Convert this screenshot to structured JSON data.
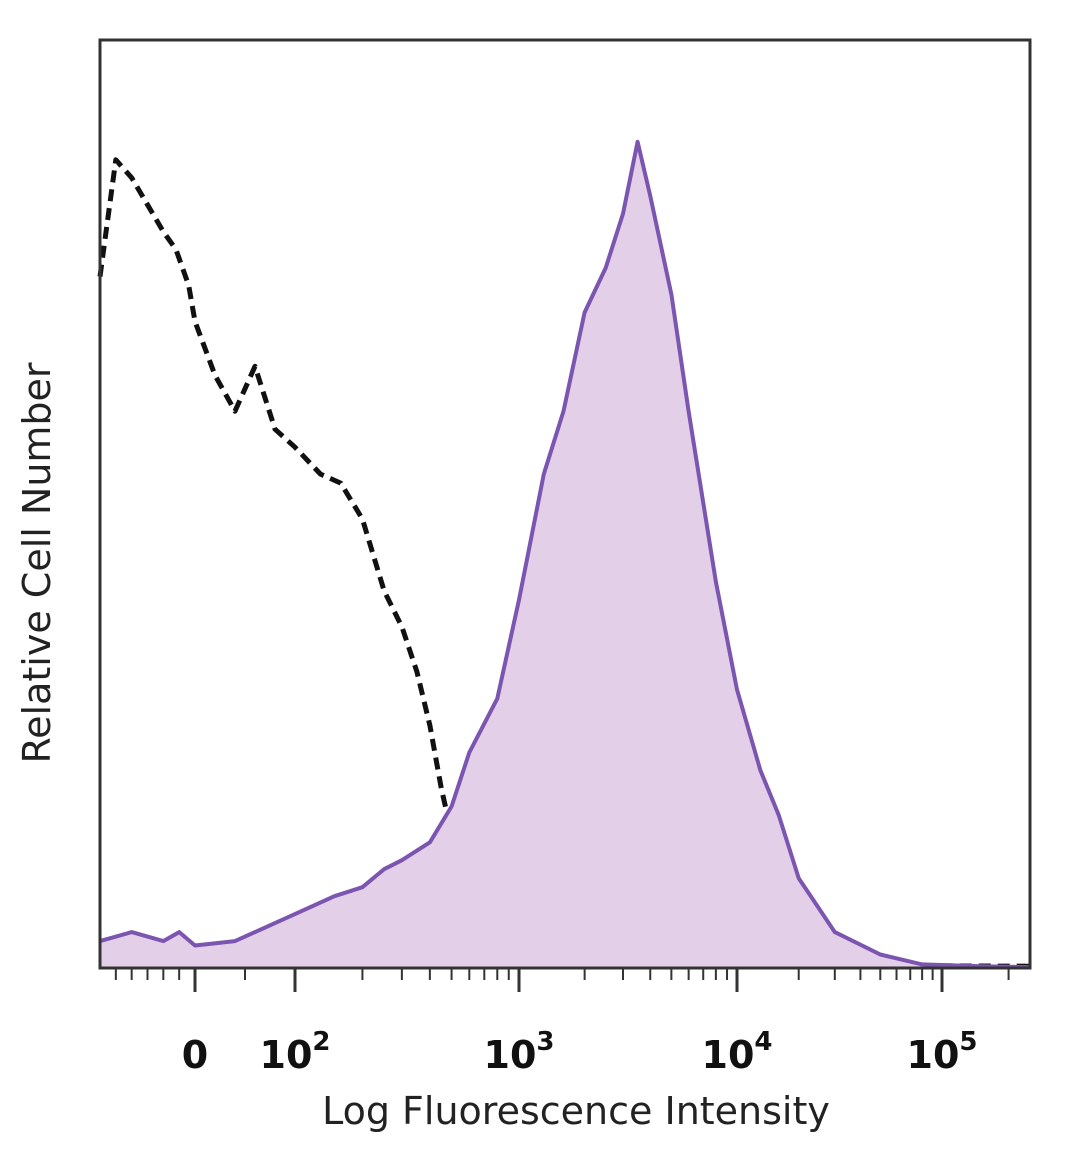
{
  "chart_data": {
    "type": "area",
    "title": "",
    "xlabel": "Log Fluorescence Intensity",
    "ylabel": "Relative Cell Number",
    "x_scale": "biexponential",
    "x_ticks": [
      {
        "value": 0,
        "label": "0"
      },
      {
        "value": 100,
        "label": "10",
        "sup": "2"
      },
      {
        "value": 1000,
        "label": "10",
        "sup": "3"
      },
      {
        "value": 10000,
        "label": "10",
        "sup": "4"
      },
      {
        "value": 100000,
        "label": "10",
        "sup": "5"
      }
    ],
    "xlim": [
      -300,
      250000
    ],
    "ylim": [
      0,
      100
    ],
    "grid": false,
    "legend": "none",
    "series": [
      {
        "style": "dashed",
        "color": "#111111",
        "points": [
          [
            -300,
            77
          ],
          [
            -250,
            90
          ],
          [
            -200,
            88
          ],
          [
            -150,
            85
          ],
          [
            -100,
            82
          ],
          [
            -60,
            80
          ],
          [
            -20,
            76
          ],
          [
            0,
            72
          ],
          [
            20,
            66
          ],
          [
            40,
            62
          ],
          [
            60,
            67
          ],
          [
            80,
            60
          ],
          [
            100,
            58
          ],
          [
            130,
            55
          ],
          [
            160,
            54
          ],
          [
            200,
            50
          ],
          [
            250,
            42
          ],
          [
            300,
            38
          ],
          [
            350,
            33
          ],
          [
            400,
            27
          ],
          [
            450,
            20
          ],
          [
            500,
            15
          ],
          [
            550,
            9
          ],
          [
            650,
            5
          ],
          [
            800,
            3
          ],
          [
            1000,
            1.5
          ],
          [
            2000,
            1
          ],
          [
            5000,
            0.5
          ],
          [
            20000,
            0.3
          ],
          [
            250000,
            0.2
          ]
        ]
      },
      {
        "style": "filled",
        "color": "#7b55b0",
        "fill": "#e3d0e8",
        "points": [
          [
            -300,
            3
          ],
          [
            -200,
            4
          ],
          [
            -100,
            3
          ],
          [
            -50,
            4
          ],
          [
            0,
            2.5
          ],
          [
            40,
            3
          ],
          [
            80,
            5
          ],
          [
            100,
            6
          ],
          [
            150,
            8
          ],
          [
            200,
            9
          ],
          [
            250,
            11
          ],
          [
            300,
            12
          ],
          [
            400,
            14
          ],
          [
            500,
            18
          ],
          [
            600,
            24
          ],
          [
            800,
            30
          ],
          [
            1000,
            41
          ],
          [
            1300,
            55
          ],
          [
            1600,
            62
          ],
          [
            2000,
            73
          ],
          [
            2500,
            78
          ],
          [
            3000,
            84
          ],
          [
            3500,
            92
          ],
          [
            4000,
            86
          ],
          [
            5000,
            75
          ],
          [
            6000,
            62
          ],
          [
            8000,
            43
          ],
          [
            10000,
            31
          ],
          [
            13000,
            22
          ],
          [
            16000,
            17
          ],
          [
            20000,
            10
          ],
          [
            30000,
            4
          ],
          [
            50000,
            1.5
          ],
          [
            80000,
            0.4
          ],
          [
            150000,
            0.2
          ],
          [
            250000,
            0.1
          ]
        ]
      }
    ]
  }
}
